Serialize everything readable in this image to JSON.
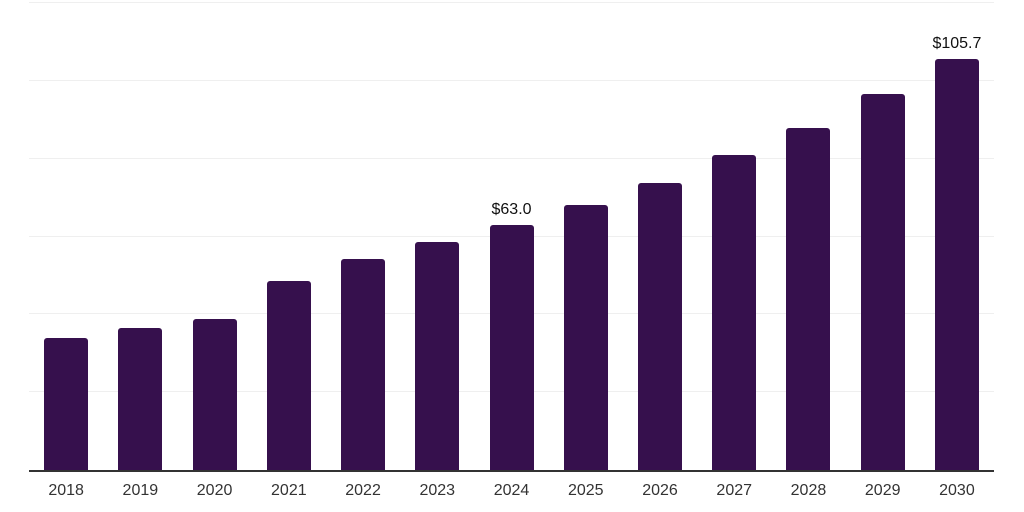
{
  "chart_data": {
    "type": "bar",
    "title": "",
    "xlabel": "",
    "ylabel": "",
    "categories": [
      "2018",
      "2019",
      "2020",
      "2021",
      "2022",
      "2023",
      "2024",
      "2025",
      "2026",
      "2027",
      "2028",
      "2029",
      "2030"
    ],
    "values": [
      34.0,
      36.5,
      38.9,
      48.6,
      54.3,
      58.6,
      63.0,
      68.0,
      73.7,
      81.0,
      87.9,
      96.5,
      105.7
    ],
    "value_labels": [
      {
        "category": "2024",
        "text": "$63.0"
      },
      {
        "category": "2030",
        "text": "$105.7"
      }
    ],
    "ylim": [
      0,
      120
    ],
    "gridline_step": 20,
    "grid": "horizontal",
    "legend": "none",
    "y_axis_ticks_visible": false,
    "colors": {
      "bar": "#36104d",
      "gridline": "#efefef",
      "axis_line": "#333333",
      "tick_label": "#333333",
      "value_label": "#111111",
      "background": "#ffffff"
    }
  }
}
